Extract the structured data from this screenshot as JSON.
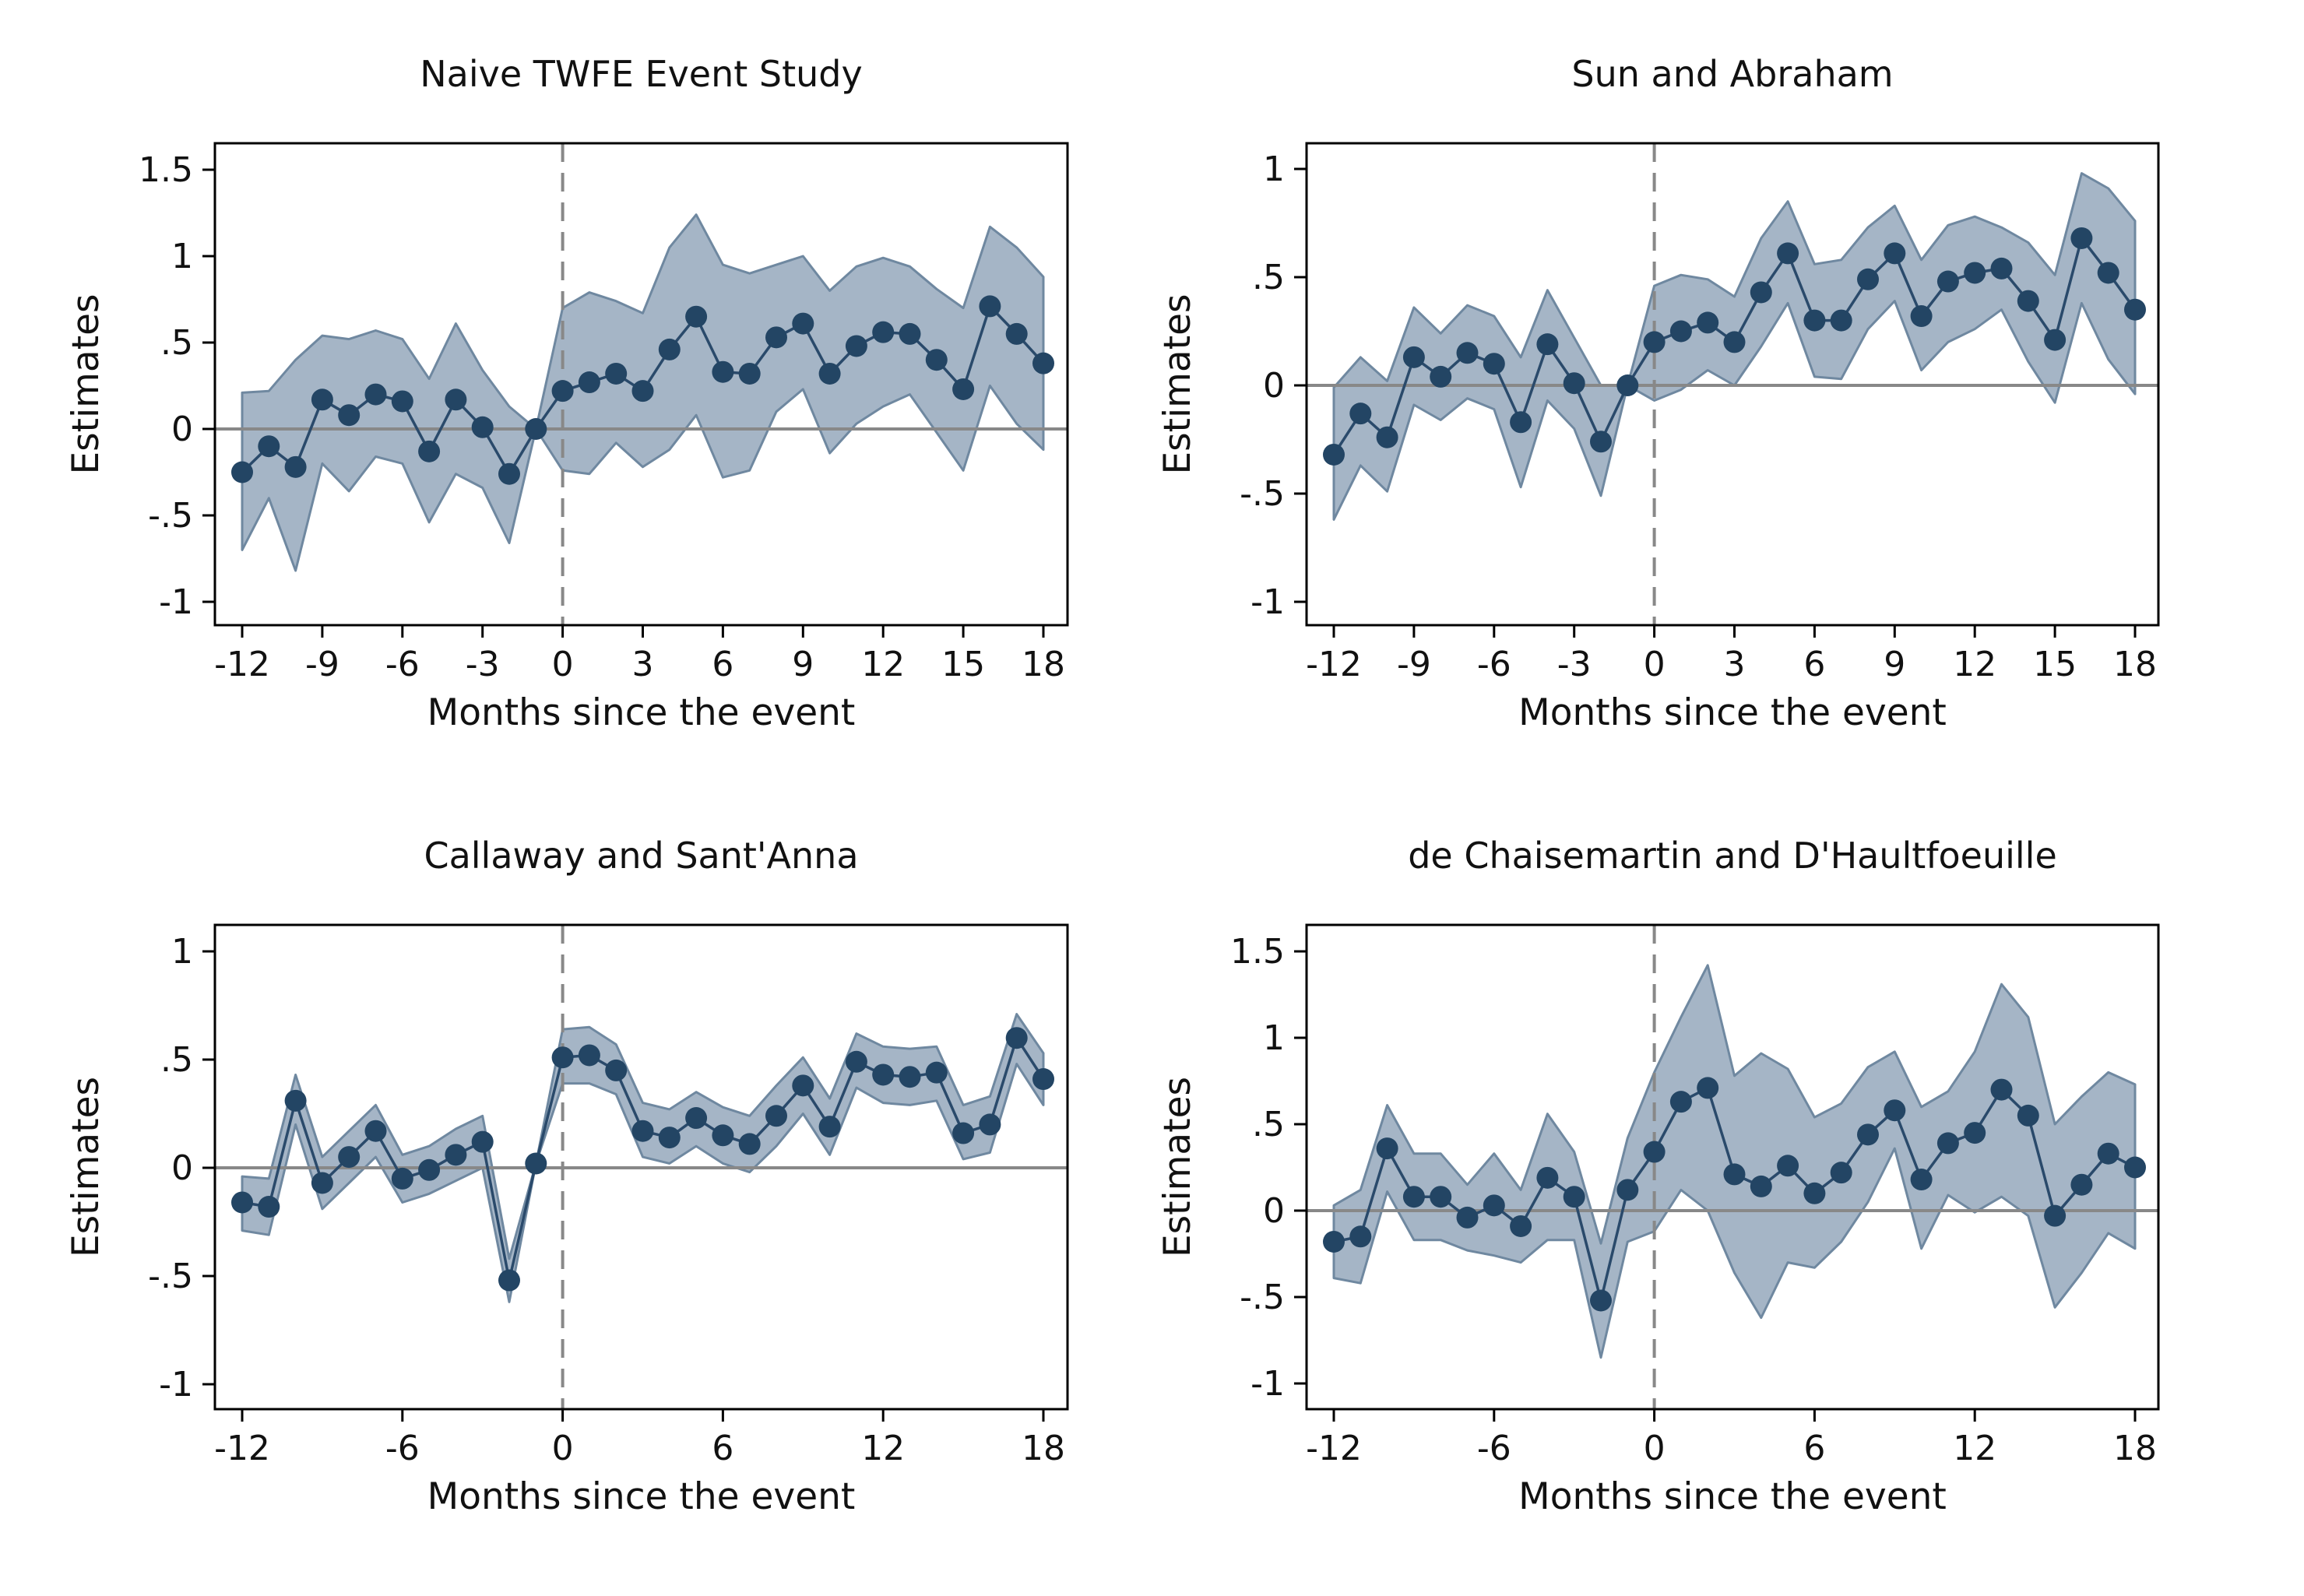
{
  "colors": {
    "band_fill": "#a5b5c6",
    "band_edge": "#6f88a0",
    "line": "#2a4a6b",
    "marker": "#234564",
    "zero_line": "#888888",
    "event_line": "#888888"
  },
  "chart_data": [
    {
      "type": "line",
      "title": "Naive TWFE Event Study",
      "xlabel": "Months since the event",
      "ylabel": "Estimates",
      "xlim": [
        -13,
        19
      ],
      "ylim": [
        -1.15,
        1.65
      ],
      "xticks": [
        -12,
        -9,
        -6,
        -3,
        0,
        3,
        6,
        9,
        12,
        15,
        18
      ],
      "yticks": [
        -1,
        -0.5,
        0,
        0.5,
        1,
        1.5
      ],
      "ytick_labels": [
        "-1",
        "-.5",
        "0",
        ".5",
        "1",
        "1.5"
      ],
      "reference_lines": {
        "y": 0,
        "x": 0
      },
      "x": [
        -12,
        -11,
        -10,
        -9,
        -8,
        -7,
        -6,
        -5,
        -4,
        -3,
        -2,
        -1,
        0,
        1,
        2,
        3,
        4,
        5,
        6,
        7,
        8,
        9,
        10,
        11,
        12,
        13,
        14,
        15,
        16,
        17,
        18
      ],
      "series": [
        {
          "values": [
            -0.25,
            -0.1,
            -0.22,
            0.17,
            0.08,
            0.2,
            0.16,
            -0.13,
            0.17,
            0.01,
            -0.26,
            0.0,
            0.22,
            0.27,
            0.32,
            0.22,
            0.46,
            0.65,
            0.33,
            0.32,
            0.53,
            0.61,
            0.32,
            0.48,
            0.56,
            0.55,
            0.4,
            0.23,
            0.71,
            0.55,
            0.38
          ],
          "lower": [
            -0.7,
            -0.4,
            -0.82,
            -0.2,
            -0.36,
            -0.16,
            -0.2,
            -0.54,
            -0.26,
            -0.34,
            -0.66,
            0.0,
            -0.24,
            -0.26,
            -0.08,
            -0.22,
            -0.12,
            0.08,
            -0.28,
            -0.24,
            0.1,
            0.23,
            -0.14,
            0.03,
            0.13,
            0.2,
            -0.02,
            -0.24,
            0.25,
            0.03,
            -0.12
          ],
          "upper": [
            0.21,
            0.22,
            0.4,
            0.54,
            0.52,
            0.57,
            0.52,
            0.29,
            0.61,
            0.34,
            0.13,
            0.0,
            0.7,
            0.79,
            0.74,
            0.67,
            1.05,
            1.24,
            0.95,
            0.9,
            0.95,
            1.0,
            0.8,
            0.94,
            0.99,
            0.94,
            0.81,
            0.7,
            1.17,
            1.05,
            0.88
          ]
        }
      ]
    },
    {
      "type": "line",
      "title": "Sun and Abraham",
      "xlabel": "Months since the event",
      "ylabel": "Estimates",
      "xlim": [
        -13,
        19
      ],
      "ylim": [
        -1.11,
        1.11
      ],
      "xticks": [
        -12,
        -9,
        -6,
        -3,
        0,
        3,
        6,
        9,
        12,
        15,
        18
      ],
      "yticks": [
        -1,
        -0.5,
        0,
        0.5,
        1
      ],
      "ytick_labels": [
        "-1",
        "-.5",
        "0",
        ".5",
        "1"
      ],
      "reference_lines": {
        "y": 0,
        "x": 0
      },
      "x": [
        -12,
        -11,
        -10,
        -9,
        -8,
        -7,
        -6,
        -5,
        -4,
        -3,
        -2,
        -1,
        0,
        1,
        2,
        3,
        4,
        5,
        6,
        7,
        8,
        9,
        10,
        11,
        12,
        13,
        14,
        15,
        16,
        17,
        18
      ],
      "series": [
        {
          "values": [
            -0.32,
            -0.13,
            -0.24,
            0.13,
            0.04,
            0.15,
            0.1,
            -0.17,
            0.19,
            0.01,
            -0.26,
            0.0,
            0.2,
            0.25,
            0.29,
            0.2,
            0.43,
            0.61,
            0.3,
            0.3,
            0.49,
            0.61,
            0.32,
            0.48,
            0.52,
            0.54,
            0.39,
            0.21,
            0.68,
            0.52,
            0.35
          ],
          "lower": [
            -0.62,
            -0.37,
            -0.49,
            -0.09,
            -0.16,
            -0.06,
            -0.11,
            -0.47,
            -0.07,
            -0.2,
            -0.51,
            0.0,
            -0.07,
            -0.02,
            0.07,
            0.0,
            0.18,
            0.38,
            0.04,
            0.03,
            0.26,
            0.39,
            0.07,
            0.2,
            0.26,
            0.35,
            0.11,
            -0.08,
            0.38,
            0.12,
            -0.04
          ],
          "upper": [
            -0.01,
            0.13,
            0.02,
            0.36,
            0.24,
            0.37,
            0.32,
            0.13,
            0.44,
            0.22,
            0.0,
            0.0,
            0.46,
            0.51,
            0.49,
            0.41,
            0.68,
            0.85,
            0.56,
            0.58,
            0.73,
            0.83,
            0.58,
            0.74,
            0.78,
            0.73,
            0.66,
            0.51,
            0.98,
            0.91,
            0.76
          ]
        }
      ]
    },
    {
      "type": "line",
      "title": "Callaway and Sant'Anna",
      "xlabel": "Months since the event",
      "ylabel": "Estimates",
      "xlim": [
        -13,
        19
      ],
      "ylim": [
        -1.11,
        1.11
      ],
      "xticks": [
        -12,
        -6,
        0,
        6,
        12,
        18
      ],
      "yticks": [
        -1,
        -0.5,
        0,
        0.5,
        1
      ],
      "ytick_labels": [
        "-1",
        "-.5",
        "0",
        ".5",
        "1"
      ],
      "reference_lines": {
        "y": 0,
        "x": 0
      },
      "x": [
        -12,
        -11,
        -10,
        -9,
        -8,
        -7,
        -6,
        -5,
        -4,
        -3,
        -2,
        -1,
        0,
        1,
        2,
        3,
        4,
        5,
        6,
        7,
        8,
        9,
        10,
        11,
        12,
        13,
        14,
        15,
        16,
        17,
        18
      ],
      "series": [
        {
          "values": [
            -0.16,
            -0.18,
            0.31,
            -0.07,
            0.05,
            0.17,
            -0.05,
            -0.01,
            0.06,
            0.12,
            -0.52,
            0.02,
            0.51,
            0.52,
            0.45,
            0.17,
            0.14,
            0.23,
            0.15,
            0.11,
            0.24,
            0.38,
            0.19,
            0.49,
            0.43,
            0.42,
            0.44,
            0.16,
            0.2,
            0.6,
            0.41
          ],
          "lower": [
            -0.29,
            -0.31,
            0.2,
            -0.19,
            -0.07,
            0.05,
            -0.16,
            -0.12,
            -0.06,
            0.0,
            -0.62,
            0.02,
            0.39,
            0.39,
            0.34,
            0.05,
            0.02,
            0.1,
            0.02,
            -0.02,
            0.1,
            0.25,
            0.06,
            0.37,
            0.3,
            0.29,
            0.31,
            0.04,
            0.07,
            0.48,
            0.29
          ],
          "upper": [
            -0.04,
            -0.05,
            0.43,
            0.05,
            0.17,
            0.29,
            0.06,
            0.1,
            0.18,
            0.24,
            -0.42,
            0.02,
            0.64,
            0.65,
            0.57,
            0.3,
            0.27,
            0.35,
            0.28,
            0.24,
            0.38,
            0.51,
            0.32,
            0.62,
            0.56,
            0.55,
            0.56,
            0.29,
            0.33,
            0.71,
            0.53
          ]
        }
      ]
    },
    {
      "type": "line",
      "title": "de Chaisemartin and D'Haultfoeuille",
      "xlabel": "Months since the event",
      "ylabel": "Estimates",
      "xlim": [
        -13,
        19
      ],
      "ylim": [
        -1.15,
        1.65
      ],
      "xticks": [
        -12,
        -6,
        0,
        6,
        12,
        18
      ],
      "yticks": [
        -1,
        -0.5,
        0,
        0.5,
        1,
        1.5
      ],
      "ytick_labels": [
        "-1",
        "-.5",
        "0",
        ".5",
        "1",
        "1.5"
      ],
      "reference_lines": {
        "y": 0,
        "x": 0
      },
      "x": [
        -12,
        -11,
        -10,
        -9,
        -8,
        -7,
        -6,
        -5,
        -4,
        -3,
        -2,
        -1,
        0,
        1,
        2,
        3,
        4,
        5,
        6,
        7,
        8,
        9,
        10,
        11,
        12,
        13,
        14,
        15,
        16,
        17,
        18
      ],
      "series": [
        {
          "values": [
            -0.18,
            -0.15,
            0.36,
            0.08,
            0.08,
            -0.04,
            0.03,
            -0.09,
            0.19,
            0.08,
            -0.52,
            0.12,
            0.34,
            0.63,
            0.71,
            0.21,
            0.14,
            0.26,
            0.1,
            0.22,
            0.44,
            0.58,
            0.18,
            0.39,
            0.45,
            0.7,
            0.55,
            -0.03,
            0.15,
            0.33,
            0.25
          ],
          "lower": [
            -0.39,
            -0.42,
            0.11,
            -0.17,
            -0.17,
            -0.23,
            -0.26,
            -0.3,
            -0.17,
            -0.17,
            -0.85,
            -0.18,
            -0.12,
            0.12,
            0.0,
            -0.36,
            -0.62,
            -0.3,
            -0.33,
            -0.18,
            0.05,
            0.36,
            -0.22,
            0.09,
            -0.01,
            0.08,
            -0.03,
            -0.56,
            -0.36,
            -0.13,
            -0.22
          ],
          "upper": [
            0.03,
            0.12,
            0.61,
            0.33,
            0.33,
            0.15,
            0.33,
            0.12,
            0.56,
            0.34,
            -0.19,
            0.42,
            0.8,
            1.12,
            1.42,
            0.78,
            0.91,
            0.82,
            0.54,
            0.62,
            0.83,
            0.92,
            0.6,
            0.69,
            0.92,
            1.31,
            1.12,
            0.5,
            0.66,
            0.8,
            0.73
          ]
        }
      ]
    }
  ]
}
